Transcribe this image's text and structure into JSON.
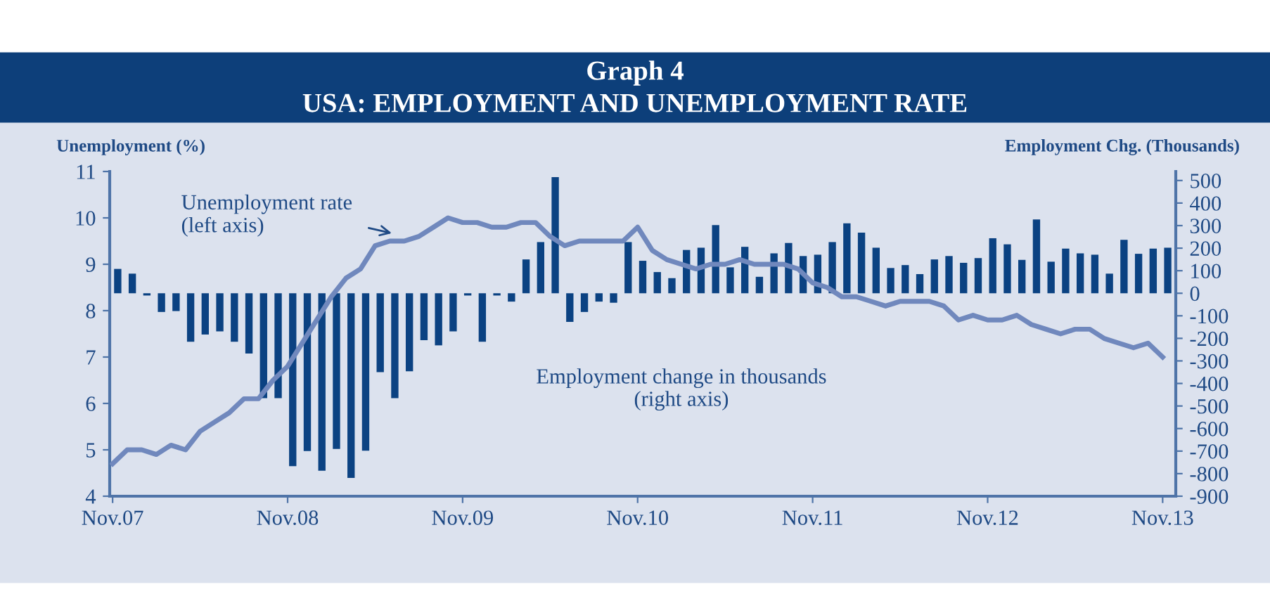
{
  "chart_data": {
    "type": "bar",
    "title": "Graph 4",
    "subtitle": "USA: EMPLOYMENT AND UNEMPLOYMENT RATE",
    "ylabel": "Unemployment (%)",
    "y2label": "Employment Chg. (Thousands)",
    "categories": [
      "Nov.07",
      null,
      null,
      null,
      null,
      null,
      null,
      null,
      null,
      null,
      null,
      null,
      "Nov.08",
      null,
      null,
      null,
      null,
      null,
      null,
      null,
      null,
      null,
      null,
      null,
      "Nov.09",
      null,
      null,
      null,
      null,
      null,
      null,
      null,
      null,
      null,
      null,
      null,
      "Nov.10",
      null,
      null,
      null,
      null,
      null,
      null,
      null,
      null,
      null,
      null,
      null,
      "Nov.11",
      null,
      null,
      null,
      null,
      null,
      null,
      null,
      null,
      null,
      null,
      null,
      "Nov.12",
      null,
      null,
      null,
      null,
      null,
      null,
      null,
      null,
      null,
      null,
      null,
      "Nov.13"
    ],
    "series": [
      {
        "axis": "y2",
        "color": "#0b4282",
        "values": [
          108,
          87,
          -10,
          -83,
          -79,
          -215,
          -183,
          -169,
          -215,
          -267,
          -465,
          -465,
          -767,
          -700,
          -787,
          -690,
          -819,
          -698,
          -350,
          -465,
          -346,
          -208,
          -231,
          -169,
          -10,
          -215,
          -10,
          -37,
          150,
          227,
          515,
          -127,
          -83,
          -37,
          -42,
          227,
          144,
          94,
          67,
          192,
          202,
          302,
          115,
          206,
          73,
          177,
          223,
          165,
          171,
          227,
          310,
          269,
          202,
          112,
          125,
          85,
          150,
          165,
          135,
          156,
          244,
          217,
          148,
          327,
          140,
          198,
          177,
          171,
          87,
          237,
          175,
          198,
          202
        ]
      },
      {
        "type": "line",
        "color": "#7088bd",
        "values": [
          4.7,
          5.0,
          5.0,
          4.9,
          5.1,
          5.0,
          5.4,
          5.6,
          5.8,
          6.1,
          6.1,
          6.5,
          6.8,
          7.3,
          7.8,
          8.3,
          8.7,
          8.9,
          9.4,
          9.5,
          9.5,
          9.6,
          9.8,
          10.0,
          9.9,
          9.9,
          9.8,
          9.8,
          9.9,
          9.9,
          9.6,
          9.4,
          9.5,
          9.5,
          9.5,
          9.5,
          9.8,
          9.3,
          9.1,
          9.0,
          8.9,
          9.0,
          9.0,
          9.1,
          9.0,
          9.0,
          9.0,
          8.9,
          8.6,
          8.5,
          8.3,
          8.3,
          8.2,
          8.1,
          8.2,
          8.2,
          8.2,
          8.1,
          7.8,
          7.9,
          7.8,
          7.8,
          7.9,
          7.7,
          7.6,
          7.5,
          7.6,
          7.6,
          7.4,
          7.3,
          7.2,
          7.3,
          7.0
        ]
      }
    ],
    "ylim": [
      4,
      11
    ],
    "yticks": [
      4,
      5,
      6,
      7,
      8,
      9,
      10,
      11
    ],
    "y2lim": [
      -900,
      540
    ],
    "y2ticks": [
      -900,
      -800,
      -700,
      -600,
      -500,
      -400,
      -300,
      -200,
      -100,
      0,
      100,
      200,
      300,
      400,
      500
    ],
    "annotations": [
      "Unemployment rate\n(left axis)",
      "Employment change in thousands\n(right axis)"
    ],
    "grid": false,
    "legend": false
  }
}
